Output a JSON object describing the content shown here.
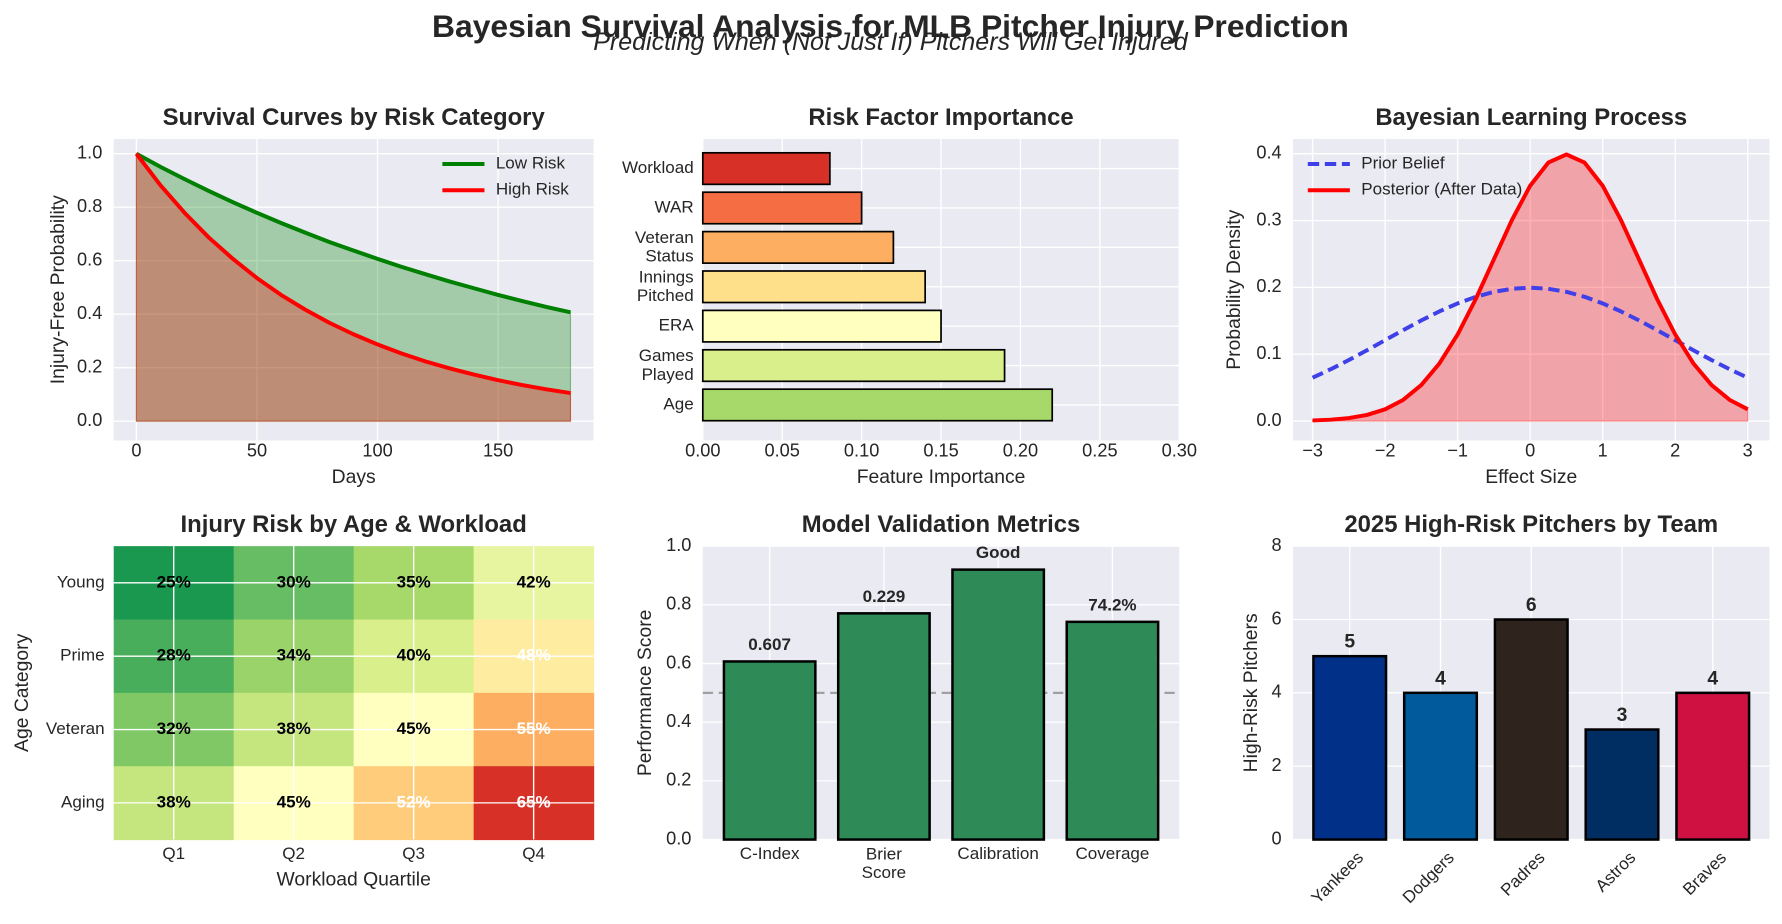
{
  "title": "Bayesian Survival Analysis for MLB Pitcher Injury Prediction",
  "subtitle": "Predicting When (Not Just If) Pitchers Will Get Injured",
  "chart_data": [
    {
      "type": "line",
      "title": "Survival Curves by Risk Category",
      "x_label": "Days",
      "y_label": "Injury-Free Probability",
      "x": [
        0,
        10,
        20,
        30,
        40,
        50,
        60,
        70,
        80,
        90,
        100,
        110,
        120,
        130,
        140,
        150,
        160,
        170,
        180
      ],
      "series": [
        {
          "name": "Low Risk",
          "color": "#008000",
          "fill": true,
          "values": [
            1,
            0.951,
            0.905,
            0.861,
            0.819,
            0.779,
            0.741,
            0.705,
            0.67,
            0.638,
            0.607,
            0.577,
            0.549,
            0.522,
            0.497,
            0.472,
            0.449,
            0.427,
            0.407
          ]
        },
        {
          "name": "High Risk",
          "color": "#ff0000",
          "fill": true,
          "values": [
            1,
            0.882,
            0.779,
            0.687,
            0.607,
            0.535,
            0.472,
            0.417,
            0.368,
            0.325,
            0.287,
            0.253,
            0.223,
            0.197,
            0.174,
            0.153,
            0.135,
            0.119,
            0.105
          ]
        }
      ],
      "xlim": [
        -9.4,
        189.6
      ],
      "ylim": [
        -0.072,
        1.055
      ],
      "xticks": [
        0,
        50,
        100,
        150
      ],
      "yticks": [
        {
          "value": 0,
          "label": "0.0"
        },
        0.2,
        0.4,
        0.6,
        0.8,
        {
          "value": 1,
          "label": "1.0"
        }
      ],
      "grid": true,
      "legend": "upper right"
    },
    {
      "type": "barh",
      "title": "Risk Factor Importance",
      "x_label": "Feature Importance",
      "categories": [
        "Age",
        "Games\nPlayed",
        "ERA",
        "Innings\nPitched",
        "Veteran\nStatus",
        "WAR",
        "Workload"
      ],
      "values": [
        0.22,
        0.19,
        0.15,
        0.14,
        0.12,
        0.1,
        0.08
      ],
      "colors": [
        "#a6d96a",
        "#d9ef8b",
        "#ffffbf",
        "#fee08b",
        "#fdae61",
        "#f46d43",
        "#d73027"
      ],
      "xlim": [
        0,
        0.3
      ],
      "xticks": [
        {
          "value": 0,
          "label": "0.00"
        },
        0.05,
        {
          "value": 0.1,
          "label": "0.10"
        },
        0.15,
        {
          "value": 0.2,
          "label": "0.20"
        },
        0.25,
        {
          "value": 0.3,
          "label": "0.30"
        }
      ],
      "grid": true
    },
    {
      "type": "line",
      "title": "Bayesian Learning Process",
      "x_label": "Effect Size",
      "y_label": "Probability Density",
      "x": [
        -3,
        -2.75,
        -2.5,
        -2.25,
        -2,
        -1.75,
        -1.5,
        -1.25,
        -1,
        -0.75,
        -0.5,
        -0.25,
        0,
        0.25,
        0.5,
        0.75,
        1,
        1.25,
        1.5,
        1.75,
        2,
        2.25,
        2.5,
        2.75,
        3
      ],
      "series": [
        {
          "name": "Prior Belief",
          "color": "#4040e8",
          "dashed": true,
          "fill": false,
          "values": [
            0.0648,
            0.0775,
            0.0913,
            0.1059,
            0.121,
            0.136,
            0.1506,
            0.1641,
            0.176,
            0.1859,
            0.1933,
            0.1979,
            0.1995,
            0.1979,
            0.1933,
            0.1859,
            0.176,
            0.1641,
            0.1506,
            0.136,
            0.121,
            0.1059,
            0.0913,
            0.0775,
            0.0648
          ]
        },
        {
          "name": "Posterior (After Data)",
          "color": "#ff0000",
          "dashed": false,
          "fill": true,
          "values": [
            0.00087,
            0.002,
            0.0044,
            0.0091,
            0.0175,
            0.0317,
            0.054,
            0.0863,
            0.1295,
            0.1826,
            0.242,
            0.3011,
            0.3521,
            0.3867,
            0.3989,
            0.3867,
            0.3521,
            0.3011,
            0.242,
            0.1826,
            0.1295,
            0.0863,
            0.054,
            0.0317,
            0.0175
          ]
        }
      ],
      "xlim": [
        -3.27,
        3.3
      ],
      "ylim": [
        -0.029,
        0.422
      ],
      "xticks": [
        {
          "value": -3,
          "label": "−3"
        },
        {
          "value": -2,
          "label": "−2"
        },
        {
          "value": -1,
          "label": "−1"
        },
        0,
        1,
        2,
        3
      ],
      "yticks": [
        {
          "value": 0,
          "label": "0.0"
        },
        0.1,
        0.2,
        0.3,
        0.4
      ],
      "grid": true,
      "legend": "upper left"
    },
    {
      "type": "heatmap",
      "title": "Injury Risk by Age & Workload",
      "x_label": "Workload Quartile",
      "y_label": "Age Category",
      "columns": [
        "Q1",
        "Q2",
        "Q3",
        "Q4"
      ],
      "rows": [
        "Young",
        "Prime",
        "Veteran",
        "Aging"
      ],
      "values": [
        [
          25,
          30,
          35,
          42
        ],
        [
          28,
          34,
          40,
          48
        ],
        [
          32,
          38,
          45,
          55
        ],
        [
          38,
          45,
          52,
          65
        ]
      ],
      "value_labels": [
        [
          "25%",
          "30%",
          "35%",
          "42%"
        ],
        [
          "28%",
          "34%",
          "40%",
          "48%"
        ],
        [
          "32%",
          "38%",
          "45%",
          "55%"
        ],
        [
          "38%",
          "45%",
          "52%",
          "65%"
        ]
      ],
      "colors": [
        [
          "#1a9850",
          "#66bd63",
          "#a6d96a",
          "#e8f5a0"
        ],
        [
          "#48ae5b",
          "#99d369",
          "#d9ef8b",
          "#feeca0"
        ],
        [
          "#80c866",
          "#c5e67e",
          "#ffffbf",
          "#fdae61"
        ],
        [
          "#c5e67e",
          "#ffffbf",
          "#fecc7a",
          "#d73027"
        ]
      ],
      "label_colors": [
        [
          "#000000",
          "#000000",
          "#000000",
          "#000000"
        ],
        [
          "#000000",
          "#000000",
          "#000000",
          "#ffffff"
        ],
        [
          "#000000",
          "#000000",
          "#000000",
          "#ffffff"
        ],
        [
          "#000000",
          "#000000",
          "#ffffff",
          "#ffffff"
        ]
      ],
      "grid": true
    },
    {
      "type": "bar",
      "title": "Model Validation Metrics",
      "y_label": "Performance Score",
      "categories": [
        "C-Index",
        "Brier\nScore",
        "Calibration",
        "Coverage"
      ],
      "values": [
        0.607,
        0.771,
        0.92,
        0.742
      ],
      "annotations": [
        "0.607",
        "0.229",
        "Good",
        "74.2%"
      ],
      "color": "#2e8b57",
      "ylim": [
        0,
        1
      ],
      "yticks": [
        {
          "value": 0,
          "label": "0.0"
        },
        0.2,
        0.4,
        0.6,
        0.8,
        {
          "value": 1,
          "label": "1.0"
        }
      ],
      "hline": 0.5,
      "grid": true
    },
    {
      "type": "bar",
      "title": "2025 High-Risk Pitchers by Team",
      "y_label": "High-Risk Pitchers",
      "categories": [
        "Yankees",
        "Dodgers",
        "Padres",
        "Astros",
        "Braves"
      ],
      "values": [
        5,
        4,
        6,
        3,
        4
      ],
      "colors": [
        "#003087",
        "#005a9c",
        "#2f241d",
        "#002d62",
        "#ce1141"
      ],
      "show_values": true,
      "x_tick_rotation": 45,
      "ylim": [
        0,
        8
      ],
      "yticks": [
        0,
        2,
        4,
        6,
        8
      ],
      "grid": true
    }
  ]
}
